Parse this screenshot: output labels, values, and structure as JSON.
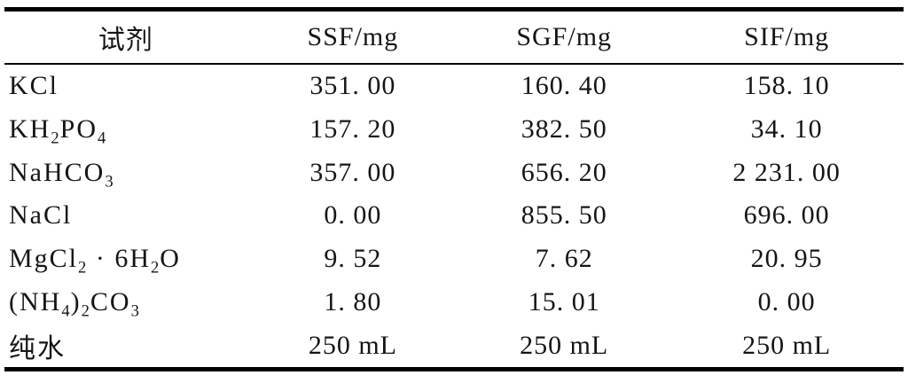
{
  "page": {
    "background": "#ffffff",
    "text_color": "#151515",
    "rule_color": "#000000"
  },
  "table": {
    "description": "three-line (booktabs) reagent composition table",
    "columns": [
      {
        "label": "试剂"
      },
      {
        "label": "SSF/mg"
      },
      {
        "label": "SGF/mg"
      },
      {
        "label": "SIF/mg"
      }
    ],
    "rows": [
      {
        "reagent": [
          {
            "t": "KCl"
          }
        ],
        "values": [
          "351. 00",
          "160. 40",
          "158. 10"
        ]
      },
      {
        "reagent": [
          {
            "t": "KH"
          },
          {
            "t": "2",
            "sub": true
          },
          {
            "t": "PO"
          },
          {
            "t": "4",
            "sub": true
          }
        ],
        "values": [
          "157. 20",
          "382. 50",
          "34. 10"
        ]
      },
      {
        "reagent": [
          {
            "t": "NaHCO"
          },
          {
            "t": "3",
            "sub": true
          }
        ],
        "values": [
          "357. 00",
          "656. 20",
          "2 231. 00"
        ]
      },
      {
        "reagent": [
          {
            "t": "NaCl"
          }
        ],
        "values": [
          "0. 00",
          "855. 50",
          "696. 00"
        ]
      },
      {
        "reagent": [
          {
            "t": "MgCl"
          },
          {
            "t": "2",
            "sub": true
          },
          {
            "t": " · "
          },
          {
            "t": "6H"
          },
          {
            "t": "2",
            "sub": true
          },
          {
            "t": "O"
          }
        ],
        "values": [
          "9. 52",
          "7. 62",
          "20. 95"
        ]
      },
      {
        "reagent": [
          {
            "t": "(NH"
          },
          {
            "t": "4",
            "sub": true
          },
          {
            "t": ")"
          },
          {
            "t": "2",
            "sub": true
          },
          {
            "t": "CO"
          },
          {
            "t": "3",
            "sub": true
          }
        ],
        "values": [
          "1. 80",
          "15. 01",
          "0. 00"
        ]
      },
      {
        "reagent": [
          {
            "t": "纯水"
          }
        ],
        "values": [
          "250 mL",
          "250 mL",
          "250 mL"
        ]
      }
    ]
  }
}
